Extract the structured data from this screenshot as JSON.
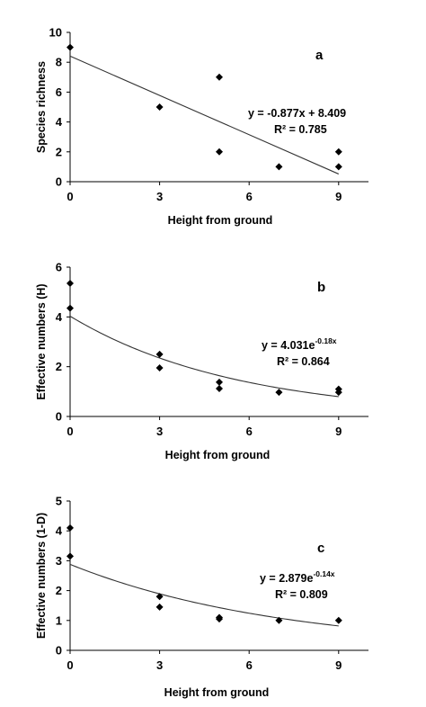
{
  "chart_data": [
    {
      "type": "scatter",
      "panel_label": "a",
      "xlabel": "Height from ground",
      "ylabel": "Species richness",
      "xlim": [
        0,
        10
      ],
      "ylim": [
        0,
        10
      ],
      "xticks": [
        "0",
        "3",
        "6",
        "9"
      ],
      "yticks": [
        "0",
        "2",
        "4",
        "6",
        "8",
        "10"
      ],
      "points": [
        {
          "x": 0,
          "y": 9
        },
        {
          "x": 3,
          "y": 5
        },
        {
          "x": 5,
          "y": 7
        },
        {
          "x": 5,
          "y": 2
        },
        {
          "x": 7,
          "y": 1
        },
        {
          "x": 9,
          "y": 2
        },
        {
          "x": 9,
          "y": 1
        }
      ],
      "trendline": {
        "kind": "linear",
        "slope": -0.877,
        "intercept": 8.409
      },
      "equation": "y = -0.877x + 8.409",
      "r2": "R² = 0.785",
      "grid": false,
      "legend": "none"
    },
    {
      "type": "scatter",
      "panel_label": "b",
      "xlabel": "Height from ground",
      "ylabel": "Effective numbers (H)",
      "xlim": [
        0,
        10
      ],
      "ylim": [
        0,
        6
      ],
      "xticks": [
        "0",
        "3",
        "6",
        "9"
      ],
      "yticks": [
        "0",
        "2",
        "4",
        "6"
      ],
      "points": [
        {
          "x": 0,
          "y": 5.35
        },
        {
          "x": 0,
          "y": 4.35
        },
        {
          "x": 3,
          "y": 2.5
        },
        {
          "x": 3,
          "y": 1.95
        },
        {
          "x": 5,
          "y": 1.38
        },
        {
          "x": 5,
          "y": 1.12
        },
        {
          "x": 7,
          "y": 0.97
        },
        {
          "x": 9,
          "y": 1.1
        },
        {
          "x": 9,
          "y": 0.97
        }
      ],
      "trendline": {
        "kind": "exponential",
        "a": 4.031,
        "b": -0.18
      },
      "equation_prefix": "y = 4.031e",
      "equation_exp": "-0.18x",
      "r2": "R² = 0.864",
      "grid": false,
      "legend": "none"
    },
    {
      "type": "scatter",
      "panel_label": "c",
      "xlabel": "Height from ground",
      "ylabel": "Effective numbers (1-D)",
      "xlim": [
        0,
        10
      ],
      "ylim": [
        0,
        5
      ],
      "xticks": [
        "0",
        "3",
        "6",
        "9"
      ],
      "yticks": [
        "0",
        "1",
        "2",
        "3",
        "4",
        "5"
      ],
      "points": [
        {
          "x": 0,
          "y": 4.1
        },
        {
          "x": 0,
          "y": 3.15
        },
        {
          "x": 3,
          "y": 1.8
        },
        {
          "x": 3,
          "y": 1.45
        },
        {
          "x": 5,
          "y": 1.1
        },
        {
          "x": 5,
          "y": 1.05
        },
        {
          "x": 7,
          "y": 1.0
        },
        {
          "x": 9,
          "y": 1.0
        }
      ],
      "trendline": {
        "kind": "exponential",
        "a": 2.879,
        "b": -0.14
      },
      "equation_prefix": "y = 2.879e",
      "equation_exp": "-0.14x",
      "r2": "R² = 0.809",
      "grid": false,
      "legend": "none"
    }
  ]
}
